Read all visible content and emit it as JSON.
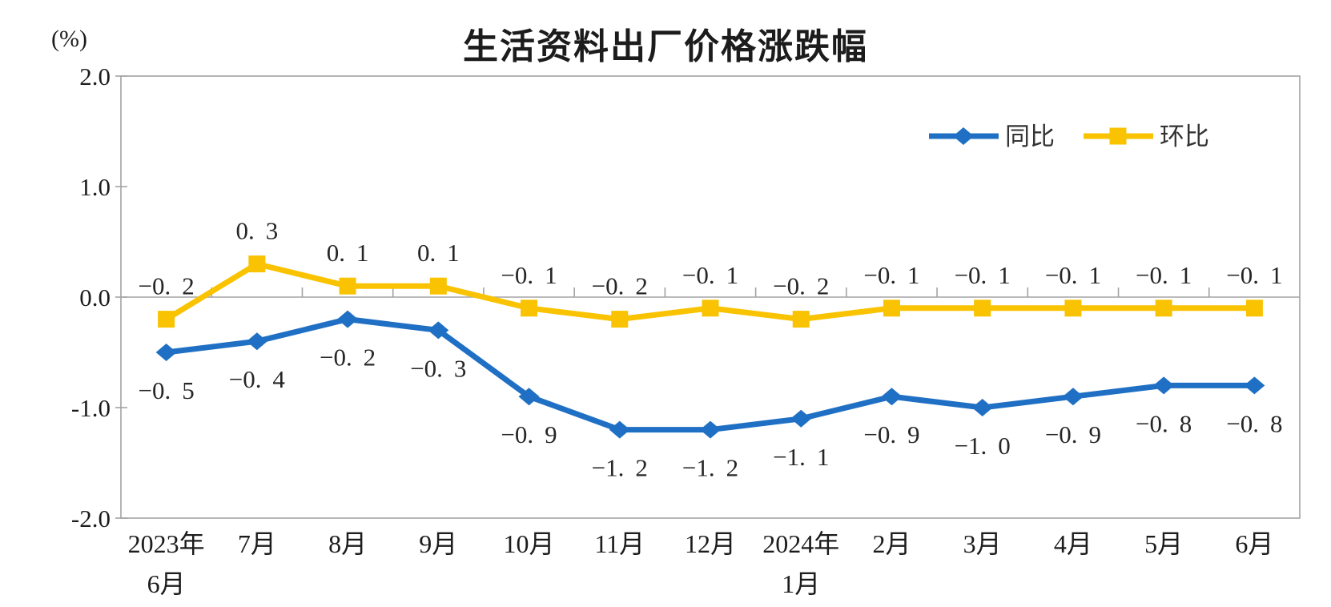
{
  "chart_data": {
    "type": "line",
    "title": "生活资料出厂价格涨跌幅",
    "unit_label": "(%)",
    "categories": [
      "2023年\n6月",
      "7月",
      "8月",
      "9月",
      "10月",
      "11月",
      "12月",
      "2024年\n1月",
      "2月",
      "3月",
      "4月",
      "5月",
      "6月"
    ],
    "series": [
      {
        "id": "yoy",
        "name": "同比",
        "color": "#1f70c4",
        "marker": "diamond",
        "label_side": "below",
        "values": [
          -0.5,
          -0.4,
          -0.2,
          -0.3,
          -0.9,
          -1.2,
          -1.2,
          -1.1,
          -0.9,
          -1.0,
          -0.9,
          -0.8,
          -0.8
        ]
      },
      {
        "id": "mom",
        "name": "环比",
        "color": "#f9c301",
        "marker": "square",
        "label_side": "above",
        "values": [
          -0.2,
          0.3,
          0.1,
          0.1,
          -0.1,
          -0.2,
          -0.1,
          -0.2,
          -0.1,
          -0.1,
          -0.1,
          -0.1,
          -0.1
        ]
      }
    ],
    "ylim": [
      -2.0,
      2.0
    ],
    "yticks": [
      2.0,
      1.0,
      0.0,
      -1.0,
      -2.0
    ],
    "grid": false,
    "legend_position": "top-right",
    "axis_color": "#a3a3a3",
    "text_color": "#1c1c1c",
    "datalabel_color": "#262626"
  }
}
